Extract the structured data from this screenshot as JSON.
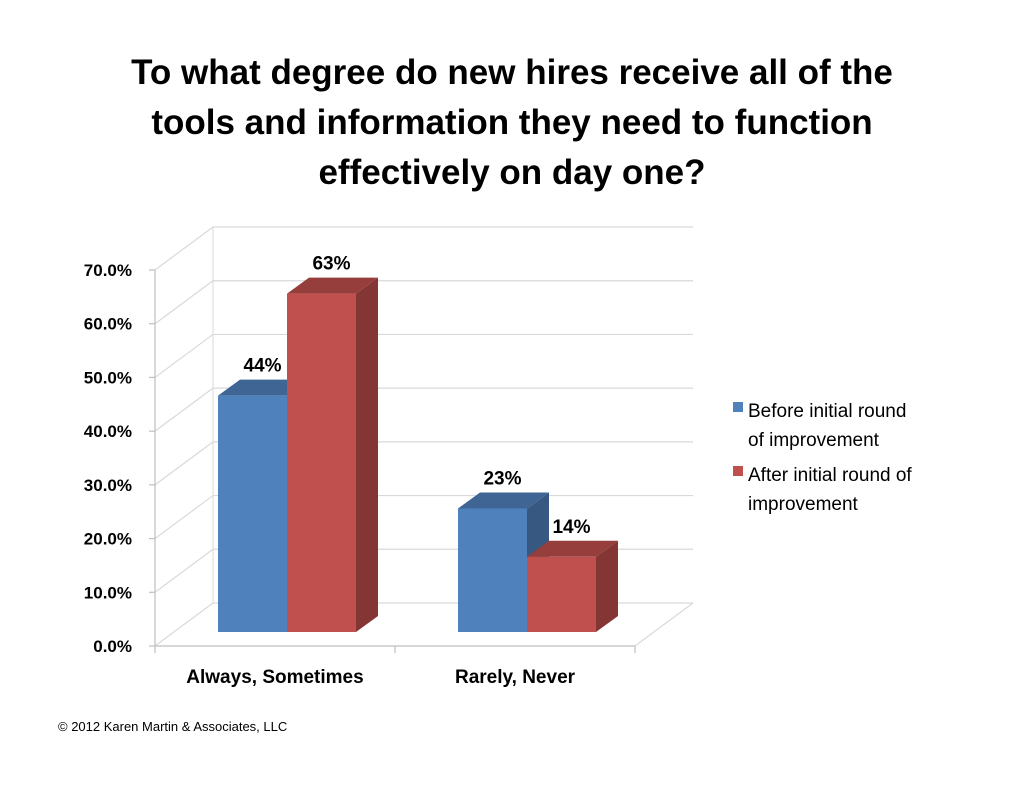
{
  "chart_data": {
    "type": "bar",
    "style": "3d-clustered-column",
    "title_lines": [
      "To what degree do new hires receive all of the",
      "tools and information they need to function",
      "effectively on day one?"
    ],
    "categories": [
      "Always, Sometimes",
      "Rarely, Never"
    ],
    "series": [
      {
        "name": "Before initial round of improvement",
        "legend_lines": [
          "Before initial round",
          "of improvement"
        ],
        "values": [
          44,
          23
        ],
        "labels": [
          "44%",
          "23%"
        ],
        "color": "#4F81BD"
      },
      {
        "name": "After initial round of improvement",
        "legend_lines": [
          "After initial round of",
          "improvement"
        ],
        "values": [
          63,
          14
        ],
        "labels": [
          "63%",
          "14%"
        ],
        "color": "#C0504D"
      }
    ],
    "ylim": [
      0,
      70
    ],
    "yticks": [
      0,
      10,
      20,
      30,
      40,
      50,
      60,
      70
    ],
    "ytick_labels": [
      "0.0%",
      "10.0%",
      "20.0%",
      "30.0%",
      "40.0%",
      "50.0%",
      "60.0%",
      "70.0%"
    ],
    "grid": true,
    "legend_position": "right"
  },
  "footer": {
    "copyright": "© 2012 Karen Martin & Associates, LLC"
  }
}
